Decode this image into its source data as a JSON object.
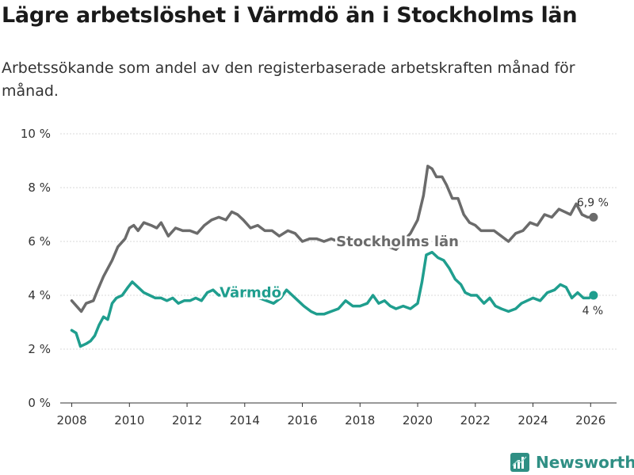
{
  "header": {
    "title": "Lägre arbetslöshet i Värmdö än i Stockholms län",
    "subtitle": "Arbetssökande som andel av den registerbaserade arbetskraften månad för månad."
  },
  "brand": {
    "name": "Newsworthy",
    "icon": "bar-chart-logo-icon",
    "color": "#2f8f84"
  },
  "chart_data": {
    "type": "line",
    "title": "Lägre arbetslöshet i Värmdö än i Stockholms län",
    "xlabel": "",
    "ylabel": "",
    "xlim": [
      2007.6,
      2026.9
    ],
    "ylim": [
      0,
      10
    ],
    "grid": true,
    "y_ticks": [
      0,
      2,
      4,
      6,
      8,
      10
    ],
    "y_tick_labels": [
      "0 %",
      "2 %",
      "4 %",
      "6 %",
      "8 %",
      "10 %"
    ],
    "x_ticks": [
      2008,
      2010,
      2012,
      2014,
      2016,
      2018,
      2020,
      2022,
      2024,
      2026
    ],
    "x_tick_labels": [
      "2008",
      "2010",
      "2012",
      "2014",
      "2016",
      "2018",
      "2020",
      "2022",
      "2024",
      "2026"
    ],
    "series": [
      {
        "name": "Stockholms län",
        "color": "#6b6b6b",
        "end_label": "6,9 %",
        "x": [
          2008.0,
          2008.33,
          2008.5,
          2008.75,
          2008.9,
          2009.1,
          2009.4,
          2009.6,
          2009.85,
          2010.0,
          2010.15,
          2010.3,
          2010.5,
          2010.75,
          2010.95,
          2011.1,
          2011.35,
          2011.6,
          2011.85,
          2012.1,
          2012.35,
          2012.6,
          2012.85,
          2013.1,
          2013.35,
          2013.55,
          2013.75,
          2013.95,
          2014.2,
          2014.45,
          2014.7,
          2014.95,
          2015.2,
          2015.5,
          2015.75,
          2016.0,
          2016.25,
          2016.5,
          2016.75,
          2017.0,
          2017.25,
          2017.5,
          2017.75,
          2018.0,
          2018.25,
          2018.5,
          2018.75,
          2019.0,
          2019.25,
          2019.5,
          2019.75,
          2020.0,
          2020.2,
          2020.35,
          2020.5,
          2020.65,
          2020.85,
          2021.0,
          2021.2,
          2021.4,
          2021.6,
          2021.8,
          2022.0,
          2022.2,
          2022.4,
          2022.65,
          2022.9,
          2023.15,
          2023.4,
          2023.65,
          2023.9,
          2024.15,
          2024.4,
          2024.65,
          2024.9,
          2025.1,
          2025.3,
          2025.5,
          2025.7,
          2025.9,
          2026.1
        ],
        "values": [
          3.8,
          3.4,
          3.7,
          3.8,
          4.2,
          4.7,
          5.3,
          5.8,
          6.1,
          6.5,
          6.6,
          6.4,
          6.7,
          6.6,
          6.5,
          6.7,
          6.2,
          6.5,
          6.4,
          6.4,
          6.3,
          6.6,
          6.8,
          6.9,
          6.8,
          7.1,
          7.0,
          6.8,
          6.5,
          6.6,
          6.4,
          6.4,
          6.2,
          6.4,
          6.3,
          6.0,
          6.1,
          6.1,
          6.0,
          6.1,
          6.0,
          6.1,
          6.1,
          6.0,
          5.9,
          5.8,
          5.8,
          5.8,
          5.7,
          6.0,
          6.3,
          6.8,
          7.7,
          8.8,
          8.7,
          8.4,
          8.4,
          8.1,
          7.6,
          7.6,
          7.0,
          6.7,
          6.6,
          6.4,
          6.4,
          6.4,
          6.2,
          6.0,
          6.3,
          6.4,
          6.7,
          6.6,
          7.0,
          6.9,
          7.2,
          7.1,
          7.0,
          7.4,
          7.0,
          6.9,
          6.9
        ]
      },
      {
        "name": "Värmdö",
        "color": "#1f9e8e",
        "end_label": "4 %",
        "x": [
          2008.0,
          2008.15,
          2008.3,
          2008.5,
          2008.65,
          2008.8,
          2008.95,
          2009.1,
          2009.25,
          2009.4,
          2009.55,
          2009.75,
          2009.95,
          2010.1,
          2010.3,
          2010.5,
          2010.7,
          2010.9,
          2011.1,
          2011.3,
          2011.5,
          2011.7,
          2011.9,
          2012.1,
          2012.3,
          2012.5,
          2012.7,
          2012.9,
          2013.1,
          2013.5,
          2014.0,
          2014.5,
          2015.0,
          2015.25,
          2015.45,
          2015.65,
          2015.85,
          2016.05,
          2016.3,
          2016.5,
          2016.75,
          2017.0,
          2017.25,
          2017.5,
          2017.75,
          2018.0,
          2018.25,
          2018.45,
          2018.65,
          2018.85,
          2019.05,
          2019.25,
          2019.5,
          2019.75,
          2020.0,
          2020.15,
          2020.3,
          2020.5,
          2020.7,
          2020.9,
          2021.1,
          2021.3,
          2021.5,
          2021.65,
          2021.85,
          2022.05,
          2022.3,
          2022.5,
          2022.7,
          2022.9,
          2023.15,
          2023.4,
          2023.6,
          2023.8,
          2024.0,
          2024.25,
          2024.5,
          2024.75,
          2024.95,
          2025.15,
          2025.35,
          2025.55,
          2025.75,
          2025.95,
          2026.1
        ],
        "values": [
          2.7,
          2.6,
          2.1,
          2.2,
          2.3,
          2.5,
          2.9,
          3.2,
          3.1,
          3.7,
          3.9,
          4.0,
          4.3,
          4.5,
          4.3,
          4.1,
          4.0,
          3.9,
          3.9,
          3.8,
          3.9,
          3.7,
          3.8,
          3.8,
          3.9,
          3.8,
          4.1,
          4.2,
          4.0,
          4.1,
          4.0,
          3.9,
          3.7,
          3.9,
          4.2,
          4.0,
          3.8,
          3.6,
          3.4,
          3.3,
          3.3,
          3.4,
          3.5,
          3.8,
          3.6,
          3.6,
          3.7,
          4.0,
          3.7,
          3.8,
          3.6,
          3.5,
          3.6,
          3.5,
          3.7,
          4.5,
          5.5,
          5.6,
          5.4,
          5.3,
          5.0,
          4.6,
          4.4,
          4.1,
          4.0,
          4.0,
          3.7,
          3.9,
          3.6,
          3.5,
          3.4,
          3.5,
          3.7,
          3.8,
          3.9,
          3.8,
          4.1,
          4.2,
          4.4,
          4.3,
          3.9,
          4.1,
          3.9,
          3.9,
          4.0
        ]
      }
    ]
  }
}
